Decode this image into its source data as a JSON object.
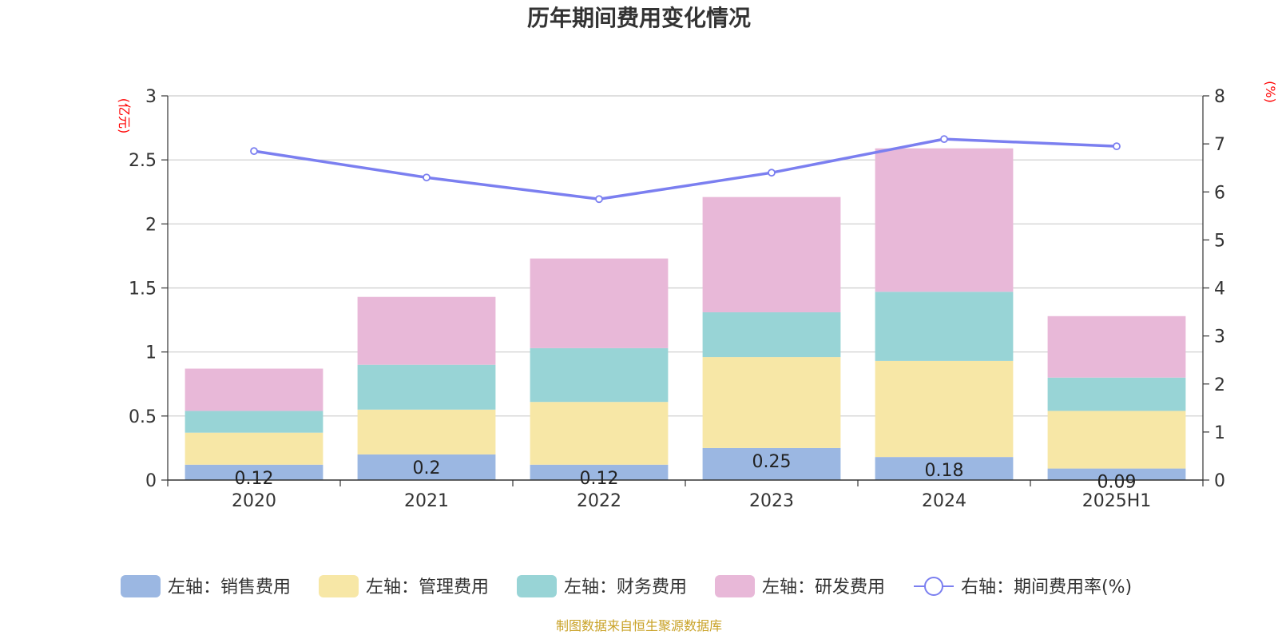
{
  "colors": {
    "sales": "#9bb7e2",
    "admin": "#f7e7a6",
    "finance": "#98d4d6",
    "rnd": "#e8b8d8",
    "rate": "#7b7ff0",
    "unit": "#ff0000",
    "source": "#c9a227"
  },
  "chart_data": {
    "type": "bar",
    "title": "历年期间费用变化情况",
    "categories": [
      "2020",
      "2021",
      "2022",
      "2023",
      "2024",
      "2025H1"
    ],
    "left_axis": {
      "unit": "(亿元)",
      "ylim": [
        0,
        3
      ],
      "ticks": [
        "0",
        "0.5",
        "1",
        "1.5",
        "2",
        "2.5",
        "3"
      ]
    },
    "right_axis": {
      "unit": "(%)",
      "ylim": [
        0,
        8
      ],
      "ticks": [
        "0",
        "1",
        "2",
        "3",
        "4",
        "5",
        "6",
        "7",
        "8"
      ]
    },
    "series": [
      {
        "key": "sales",
        "name": "左轴：销售费用",
        "axis": "left",
        "stack": true,
        "values": [
          0.12,
          0.2,
          0.12,
          0.25,
          0.18,
          0.09
        ],
        "labels": [
          "0.12",
          "0.2",
          "0.12",
          "0.25",
          "0.18",
          "0.09"
        ]
      },
      {
        "key": "admin",
        "name": "左轴：管理费用",
        "axis": "left",
        "stack": true,
        "values": [
          0.25,
          0.35,
          0.49,
          0.71,
          0.75,
          0.45
        ]
      },
      {
        "key": "finance",
        "name": "左轴：财务费用",
        "axis": "left",
        "stack": true,
        "values": [
          0.17,
          0.35,
          0.42,
          0.35,
          0.54,
          0.26
        ]
      },
      {
        "key": "rnd",
        "name": "左轴：研发费用",
        "axis": "left",
        "stack": true,
        "values": [
          0.33,
          0.53,
          0.7,
          0.9,
          1.12,
          0.48
        ]
      },
      {
        "key": "rate",
        "name": "右轴：期间费用率(%)",
        "axis": "right",
        "type": "line",
        "values": [
          6.85,
          6.3,
          5.85,
          6.4,
          7.1,
          6.95
        ]
      }
    ],
    "grid": true,
    "legend": "bottom"
  },
  "source": "制图数据来自恒生聚源数据库"
}
